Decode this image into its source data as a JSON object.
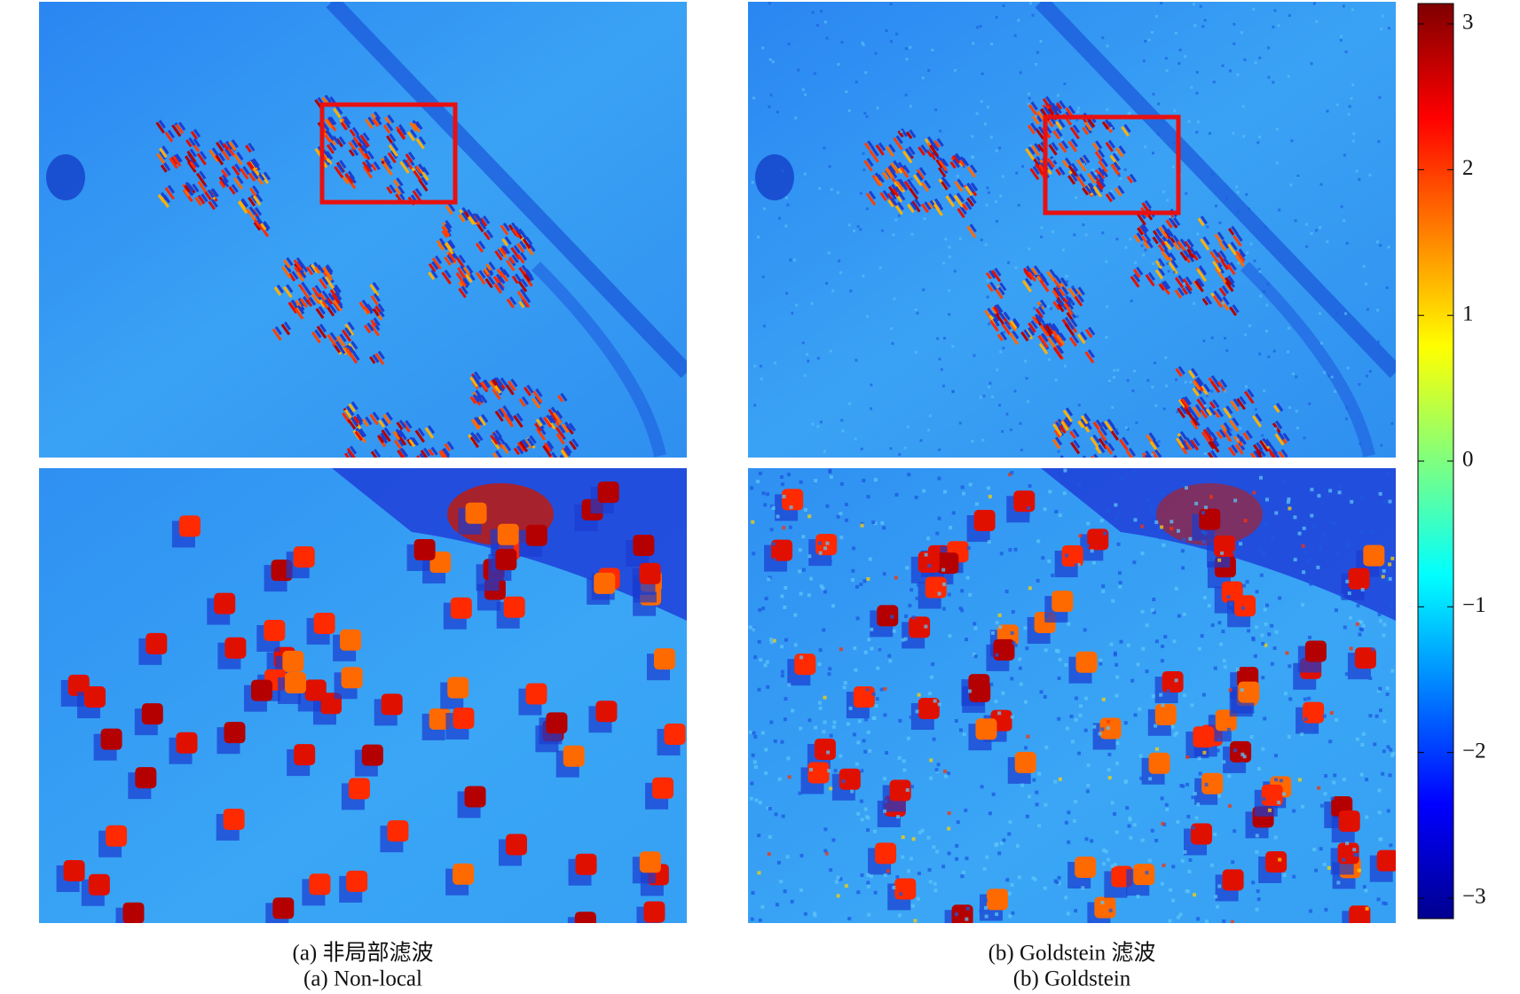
{
  "panels": [
    {
      "caption_zh": "(a) 非局部滤波",
      "caption_en": "(a) Non-local"
    },
    {
      "caption_zh": "(b) Goldstein 滤波",
      "caption_en": "(b) Goldstein"
    }
  ],
  "colorbar": {
    "colormap": "jet",
    "clim": [
      -3.14,
      3.14
    ],
    "ticks": [
      3,
      2,
      1,
      0,
      {
        "value": -1,
        "label": "−1"
      },
      {
        "value": -2,
        "label": "−2"
      },
      {
        "value": -3,
        "label": "−3"
      }
    ]
  }
}
